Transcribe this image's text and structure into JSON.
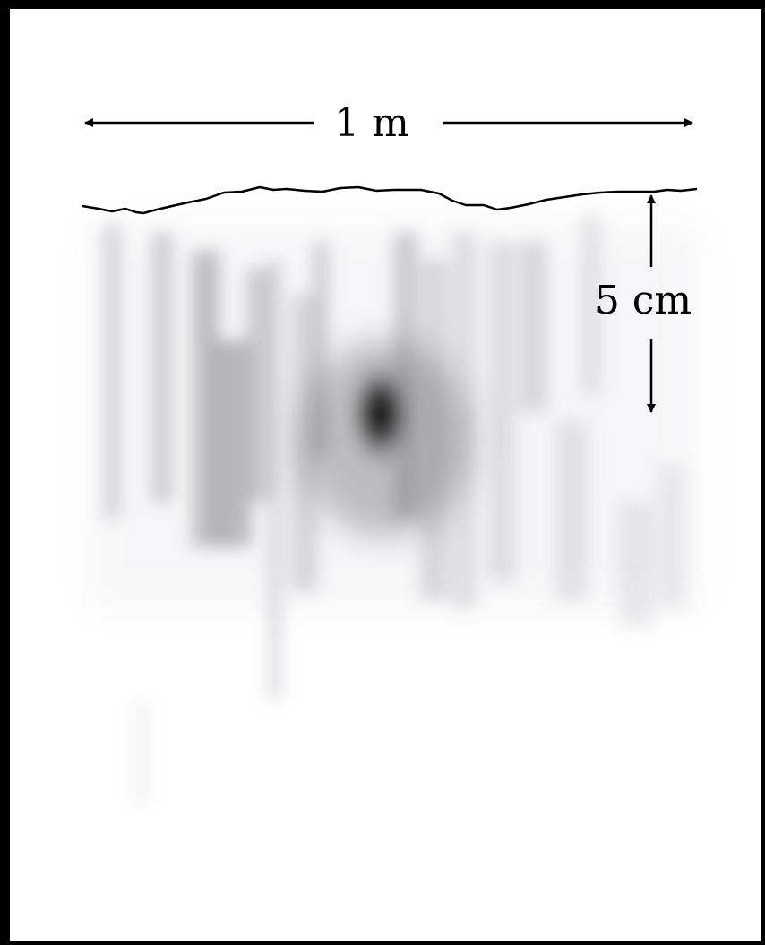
{
  "figure": {
    "width_label": "1 m",
    "depth_label": "5 cm"
  },
  "colors": {
    "frame": "#000000",
    "background": "#ffffff",
    "ink": "#000000"
  }
}
